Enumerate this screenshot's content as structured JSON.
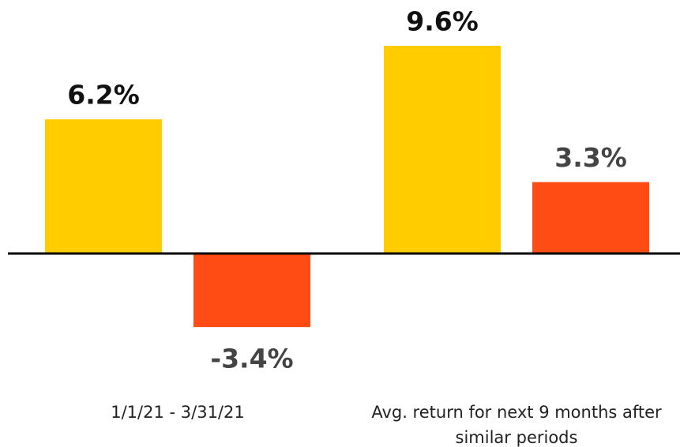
{
  "chart_data": {
    "type": "bar",
    "categories": [
      "1/1/21 - 3/31/21",
      "Avg. return for next 9 months after similar periods"
    ],
    "series": [
      {
        "color": "#FFCC00",
        "values": [
          6.2,
          9.6
        ],
        "value_labels": [
          "6.2%",
          "9.6%"
        ]
      },
      {
        "color": "#FF4C15",
        "values": [
          -3.4,
          3.3
        ],
        "value_labels": [
          "-3.4%",
          "3.3%"
        ]
      }
    ],
    "ylim": [
      -5,
      10
    ]
  }
}
